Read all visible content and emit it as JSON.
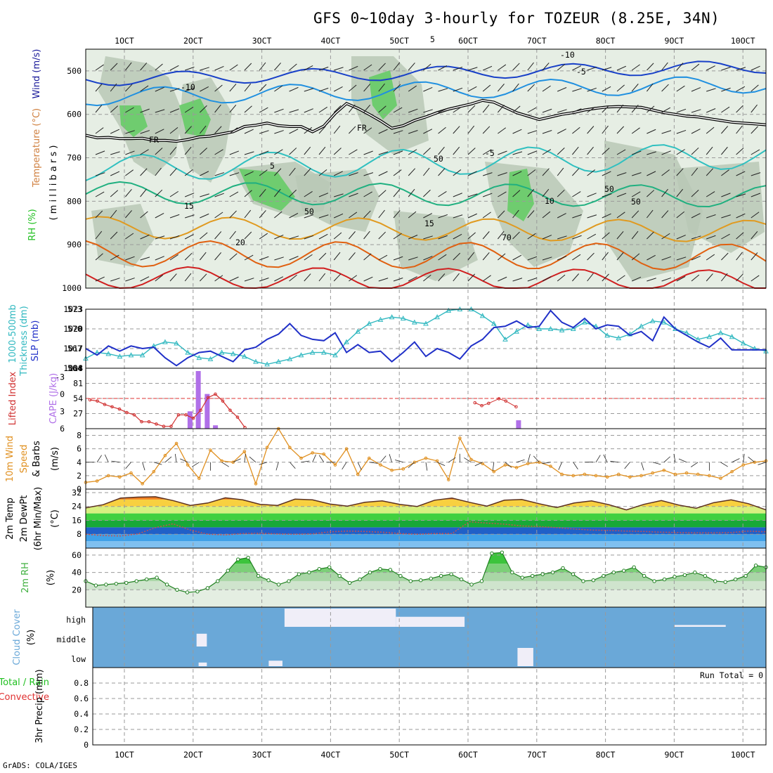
{
  "title": "GFS 0~10day 3-hourly for TOZEUR (8.25E, 34N)",
  "credit": "GrADS: COLA/IGES",
  "colors": {
    "temperature": "#d08040",
    "wind_label": "#1a1a9a",
    "rh": "#20c020",
    "thickness": "#30b8c0",
    "slp": "#2030c8",
    "lifted_index": "#d03030",
    "cape": "#b070e8",
    "wind10m": "#e09020",
    "rh2m": "#40b040",
    "cloud": "#6aa8d8",
    "precip_total": "#20c020",
    "precip_conv": "#e03030"
  },
  "x_axis": {
    "ticks": [
      "1OCT",
      "2OCT",
      "3OCT",
      "4OCT",
      "5OCT",
      "6OCT",
      "7OCT",
      "8OCT",
      "9OCT",
      "10OCT"
    ]
  },
  "panels": {
    "upper": {
      "label_wind": "Wind (m/s)",
      "label_temp": "Temperature (°C)",
      "label_rh": "RH (%)",
      "label_mb": "( m i l l i b a r s )",
      "contour_labels": [
        "FR",
        "FR",
        "-10",
        "-10",
        "-5",
        "-5",
        "5",
        "5",
        "10",
        "15",
        "15",
        "20",
        "50",
        "50",
        "50",
        "70",
        "50"
      ]
    },
    "thick": {
      "label_a": "1000-500mb",
      "label_b": "Thickness (dm)",
      "label_c": "SLP (mb)"
    },
    "cape": {
      "label_a": "Lifted Index",
      "label_b": "CAPE (J/kg)"
    },
    "wind10": {
      "label_a": "10m Wind",
      "label_b": "Speed",
      "label_c": "& Barbs",
      "label_d": "(m/s)"
    },
    "temp2m": {
      "label_a": "2m Temp",
      "label_b": "2m DewPt",
      "label_c": "(6hr Min/Max)",
      "label_d": "(°C)"
    },
    "rh2m": {
      "label_a": "2m RH",
      "label_b": "(%)"
    },
    "cloud": {
      "label_a": "Cloud Cover",
      "label_b": "(%)"
    },
    "precip": {
      "label_a": "Total / Rain",
      "label_b": "Convective",
      "label_c": "3hr Precip (mm)",
      "run_total": "Run Total = 0"
    }
  },
  "chart_data": [
    {
      "type": "contour",
      "name": "upper-air cross section",
      "y_axis": {
        "label": "millibars",
        "ticks": [
          500,
          600,
          700,
          800,
          900,
          1000
        ],
        "range": [
          450,
          1000
        ]
      },
      "freezing_level_mb": [
        648,
        654,
        653,
        656,
        656,
        655,
        660,
        660,
        662,
        658,
        652,
        650,
        645,
        640,
        628,
        625,
        620,
        626,
        628,
        628,
        640,
        627,
        598,
        575,
        586,
        600,
        615,
        632,
        626,
        614,
        606,
        596,
        588,
        582,
        576,
        568,
        572,
        584,
        596,
        604,
        612,
        606,
        600,
        596,
        590,
        586,
        583,
        582,
        583,
        584,
        590,
        596,
        600,
        604,
        606,
        610,
        614,
        618,
        620,
        622,
        624
      ],
      "temperature_isotherms_c": [
        -10,
        -5,
        5,
        10,
        15,
        20
      ]
    },
    {
      "type": "line",
      "name": "thickness and slp",
      "series": [
        {
          "name": "1000-500mb Thickness (dm)",
          "axis": [
            564,
            573
          ],
          "values": [
            565.5,
            566.4,
            566.2,
            565.8,
            566.0,
            566.0,
            567.4,
            568.0,
            567.8,
            566.4,
            565.6,
            565.4,
            566.4,
            566.2,
            565.8,
            565.0,
            564.6,
            565.0,
            565.4,
            566.0,
            566.4,
            566.4,
            566.0,
            568.0,
            569.6,
            570.8,
            571.4,
            571.8,
            571.6,
            571.0,
            570.8,
            571.8,
            572.8,
            573.0,
            573.0,
            572.0,
            570.8,
            568.4,
            569.6,
            570.6,
            570.0,
            570.0,
            569.8,
            570.0,
            571.0,
            570.4,
            569.0,
            568.6,
            569.2,
            570.4,
            571.2,
            571.0,
            570.0,
            569.4,
            568.4,
            568.8,
            569.4,
            568.8,
            567.8,
            567.0,
            566.6
          ]
        },
        {
          "name": "SLP (mb)",
          "axis": [
            1014,
            1023
          ],
          "values": [
            1017.0,
            1016.0,
            1017.4,
            1016.6,
            1017.4,
            1017.0,
            1017.2,
            1015.6,
            1014.4,
            1015.6,
            1016.4,
            1016.6,
            1015.8,
            1015.0,
            1016.8,
            1017.2,
            1018.4,
            1019.2,
            1020.8,
            1019.0,
            1018.4,
            1018.2,
            1019.4,
            1016.4,
            1017.6,
            1016.4,
            1016.6,
            1015.0,
            1016.4,
            1018.0,
            1015.8,
            1017.0,
            1016.4,
            1015.4,
            1017.4,
            1018.4,
            1020.2,
            1020.4,
            1021.2,
            1020.2,
            1020.4,
            1022.8,
            1021.0,
            1020.2,
            1021.6,
            1020.0,
            1020.6,
            1020.4,
            1019.0,
            1019.6,
            1018.2,
            1021.8,
            1020.0,
            1019.0,
            1018.0,
            1017.2,
            1018.6,
            1016.8,
            1016.8,
            1016.8,
            1016.8
          ]
        }
      ]
    },
    {
      "type": "bar",
      "name": "lifted index and cape",
      "y_axis_left": {
        "label": "Lifted Index",
        "ticks": [
          -3,
          0,
          3,
          6
        ]
      },
      "y_axis_right": {
        "label": "CAPE (J/kg)",
        "ticks": [
          27,
          54,
          81,
          108
        ]
      },
      "lifted_index": [
        1.0,
        1.2,
        1.8,
        2.2,
        2.6,
        3.2,
        3.6,
        4.8,
        4.8,
        5.2,
        5.6,
        5.6,
        3.6,
        3.6,
        4.2,
        2.8,
        0.6,
        0.0,
        1.2,
        2.8,
        4.0,
        5.8
      ],
      "cape_bars": [
        {
          "day": 1.95,
          "value": 31
        },
        {
          "day": 2.07,
          "value": 103
        },
        {
          "day": 2.2,
          "value": 62
        },
        {
          "day": 2.32,
          "value": 6
        },
        {
          "day": 6.73,
          "value": 15
        }
      ]
    },
    {
      "type": "line",
      "name": "10m wind speed",
      "y_axis": {
        "ticks": [
          0,
          2,
          4,
          6,
          8
        ],
        "range": [
          0,
          9
        ]
      },
      "values": [
        1.0,
        1.2,
        2.0,
        1.8,
        2.4,
        0.8,
        2.6,
        5.0,
        6.8,
        3.6,
        1.6,
        5.8,
        4.2,
        4.0,
        5.6,
        0.8,
        6.2,
        9.0,
        6.2,
        4.6,
        5.4,
        5.2,
        3.6,
        6.0,
        2.2,
        4.6,
        3.6,
        2.8,
        3.0,
        4.0,
        4.6,
        4.2,
        1.4,
        7.6,
        4.4,
        3.8,
        2.6,
        3.6,
        3.2,
        3.8,
        4.0,
        3.4,
        2.2,
        2.0,
        2.2,
        2.0,
        1.8,
        2.2,
        1.8,
        2.0,
        2.4,
        2.8,
        2.2,
        2.4,
        2.2,
        2.0,
        1.6,
        2.6,
        3.6,
        4.0,
        4.2
      ]
    },
    {
      "type": "area",
      "name": "2m temperature and dewpoint",
      "y_axis": {
        "ticks": [
          8,
          16,
          24,
          32
        ],
        "range": [
          0,
          34
        ]
      },
      "temperature_c": [
        23.2,
        25.0,
        28.8,
        29.4,
        29.6,
        27.4,
        24.6,
        26.0,
        29.0,
        27.8,
        25.2,
        24.6,
        28.2,
        27.8,
        25.4,
        24.2,
        26.4,
        27.2,
        25.2,
        24.0,
        27.6,
        28.8,
        26.4,
        24.2,
        27.6,
        28.0,
        25.6,
        23.4,
        26.0,
        27.2,
        25.0,
        22.0,
        25.2,
        27.4,
        24.8,
        23.0,
        26.2,
        27.8,
        25.6,
        22.0
      ],
      "dewpoint_c": [
        8.0,
        7.2,
        7.0,
        8.2,
        11.8,
        14.0,
        10.4,
        8.0,
        7.6,
        8.4,
        8.6,
        8.2,
        8.0,
        8.2,
        9.4,
        9.8,
        9.6,
        9.2,
        8.4,
        8.0,
        8.4,
        8.4,
        15.2,
        14.4,
        13.8,
        12.8,
        12.4,
        11.8,
        11.0,
        10.4,
        10.2,
        9.8,
        9.6,
        9.2,
        9.0,
        8.8,
        8.8,
        9.0,
        9.8,
        9.4
      ]
    },
    {
      "type": "area",
      "name": "2m relative humidity",
      "y_axis": {
        "ticks": [
          20,
          40,
          60
        ],
        "range": [
          0,
          68
        ]
      },
      "values": [
        30,
        25,
        26,
        27,
        28,
        30,
        32,
        34,
        26,
        20,
        17,
        18,
        22,
        30,
        42,
        55,
        57,
        36,
        31,
        26,
        30,
        38,
        40,
        44,
        46,
        36,
        28,
        32,
        40,
        44,
        43,
        36,
        30,
        31,
        33,
        36,
        38,
        32,
        26,
        30,
        62,
        63,
        40,
        34,
        36,
        38,
        40,
        45,
        38,
        30,
        31,
        36,
        40,
        42,
        46,
        36,
        30,
        32,
        35,
        37,
        40,
        36,
        30,
        29,
        32,
        36,
        48,
        46
      ]
    },
    {
      "type": "heatmap",
      "name": "cloud cover",
      "levels": [
        "high",
        "middle",
        "low"
      ],
      "high_cover_segments": [
        {
          "from": 3.33,
          "to": 4.95,
          "value": 100
        },
        {
          "from": 4.95,
          "to": 5.95,
          "value": 55
        },
        {
          "from": 9.0,
          "to": 9.75,
          "value": 10
        }
      ],
      "middle_cover_segments": [
        {
          "from": 2.05,
          "to": 2.2,
          "value": 70
        }
      ],
      "low_cover_segments": [
        {
          "from": 6.72,
          "to": 6.95,
          "value": 100
        },
        {
          "from": 3.1,
          "to": 3.3,
          "value": 30
        },
        {
          "from": 2.08,
          "to": 2.2,
          "value": 20
        }
      ]
    },
    {
      "type": "bar",
      "name": "3hr precipitation",
      "y_axis": {
        "ticks": [
          0,
          0.2,
          0.4,
          0.6,
          0.8
        ],
        "range": [
          0,
          1
        ]
      },
      "values": []
    }
  ]
}
